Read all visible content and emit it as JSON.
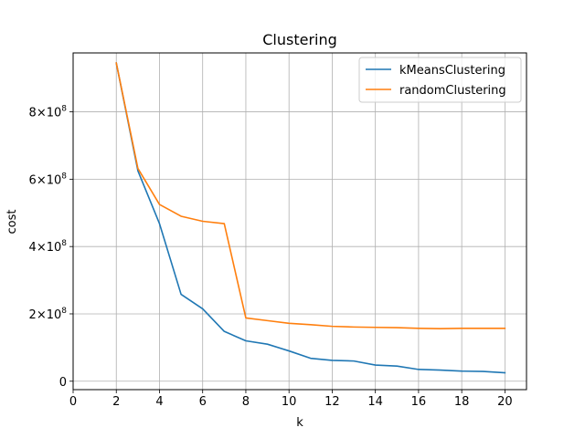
{
  "chart_data": {
    "type": "line",
    "title": "Clustering",
    "xlabel": "k",
    "ylabel": "cost",
    "xlim": [
      0,
      21
    ],
    "ylim": [
      -25000000,
      975000000
    ],
    "xticks": [
      0,
      2,
      4,
      6,
      8,
      10,
      12,
      14,
      16,
      18,
      20
    ],
    "xtick_labels": [
      "0",
      "2",
      "4",
      "6",
      "8",
      "10",
      "12",
      "14",
      "16",
      "18",
      "20"
    ],
    "yticks": [
      0,
      200000000,
      400000000,
      600000000,
      800000000
    ],
    "ytick_labels": [
      {
        "mantissa": "0",
        "exponent": ""
      },
      {
        "mantissa": "2×10",
        "exponent": "8"
      },
      {
        "mantissa": "4×10",
        "exponent": "8"
      },
      {
        "mantissa": "6×10",
        "exponent": "8"
      },
      {
        "mantissa": "8×10",
        "exponent": "8"
      }
    ],
    "grid": true,
    "legend_position": "top-right",
    "x": [
      2,
      3,
      4,
      5,
      6,
      7,
      8,
      9,
      10,
      11,
      12,
      13,
      14,
      15,
      16,
      17,
      18,
      19,
      20
    ],
    "series": [
      {
        "name": "kMeansClustering",
        "color": "#1f77b4",
        "values": [
          945000000,
          625000000,
          468000000,
          258000000,
          215000000,
          148000000,
          120000000,
          110000000,
          90000000,
          68000000,
          62000000,
          60000000,
          48000000,
          45000000,
          35000000,
          33000000,
          30000000,
          29000000,
          25000000
        ]
      },
      {
        "name": "randomClustering",
        "color": "#ff7f0e",
        "values": [
          945000000,
          632000000,
          525000000,
          490000000,
          475000000,
          468000000,
          188000000,
          180000000,
          172000000,
          168000000,
          163000000,
          161000000,
          160000000,
          159000000,
          157000000,
          156000000,
          157000000,
          157000000,
          157000000
        ]
      }
    ]
  }
}
